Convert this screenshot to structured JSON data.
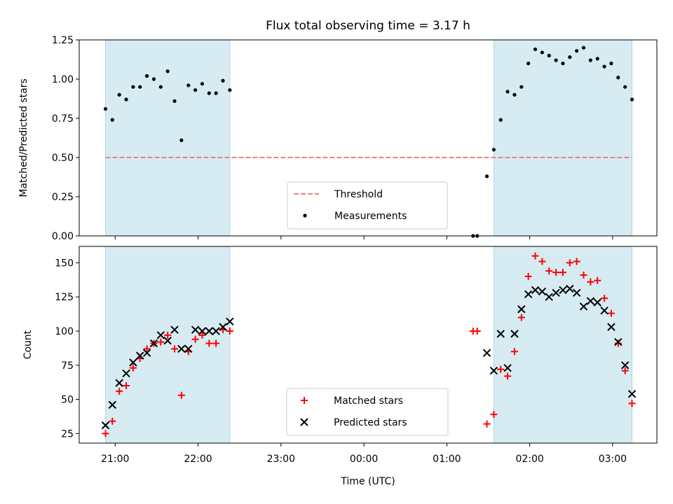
{
  "title": "Flux total observing time = 3.17 h",
  "xlabel": "Time (UTC)",
  "x_ticks": [
    "21:00",
    "22:00",
    "23:00",
    "00:00",
    "01:00",
    "02:00",
    "03:00"
  ],
  "colors": {
    "shade": "#add8e6",
    "threshold": "#f08080",
    "measurements": "#000000",
    "matched": "#ff0000",
    "predicted": "#000000"
  },
  "chart_data": [
    {
      "type": "scatter",
      "ylabel": "Matched/Predicted stars",
      "xlim": [
        "20:34",
        "03:32"
      ],
      "ylim": [
        0,
        1.25
      ],
      "y_ticks": [
        "0.00",
        "0.25",
        "0.50",
        "0.75",
        "1.00",
        "1.25"
      ],
      "threshold": 0.5,
      "shaded_intervals": [
        [
          "20:53",
          "22:23"
        ],
        [
          "01:34",
          "03:14"
        ]
      ],
      "legend": {
        "placement": "lower-center",
        "entries": [
          "Threshold",
          "Measurements"
        ]
      },
      "series": [
        {
          "name": "Measurements",
          "marker": "dot",
          "points": [
            [
              "20:53",
              0.81
            ],
            [
              "20:58",
              0.74
            ],
            [
              "21:03",
              0.9
            ],
            [
              "21:08",
              0.87
            ],
            [
              "21:13",
              0.95
            ],
            [
              "21:18",
              0.95
            ],
            [
              "21:23",
              1.02
            ],
            [
              "21:28",
              1.0
            ],
            [
              "21:33",
              0.95
            ],
            [
              "21:38",
              1.05
            ],
            [
              "21:43",
              0.86
            ],
            [
              "21:48",
              0.61
            ],
            [
              "21:53",
              0.96
            ],
            [
              "21:58",
              0.93
            ],
            [
              "22:03",
              0.97
            ],
            [
              "22:08",
              0.91
            ],
            [
              "22:13",
              0.91
            ],
            [
              "22:18",
              0.99
            ],
            [
              "22:23",
              0.93
            ],
            [
              "01:19",
              0.0
            ],
            [
              "01:22",
              0.0
            ],
            [
              "01:29",
              0.38
            ],
            [
              "01:34",
              0.55
            ],
            [
              "01:39",
              0.74
            ],
            [
              "01:44",
              0.92
            ],
            [
              "01:49",
              0.9
            ],
            [
              "01:54",
              0.95
            ],
            [
              "01:59",
              1.1
            ],
            [
              "02:04",
              1.19
            ],
            [
              "02:09",
              1.17
            ],
            [
              "02:14",
              1.15
            ],
            [
              "02:19",
              1.12
            ],
            [
              "02:24",
              1.1
            ],
            [
              "02:29",
              1.14
            ],
            [
              "02:34",
              1.18
            ],
            [
              "02:39",
              1.2
            ],
            [
              "02:44",
              1.12
            ],
            [
              "02:49",
              1.13
            ],
            [
              "02:54",
              1.08
            ],
            [
              "02:59",
              1.1
            ],
            [
              "03:04",
              1.01
            ],
            [
              "03:09",
              0.95
            ],
            [
              "03:14",
              0.87
            ]
          ]
        }
      ]
    },
    {
      "type": "scatter",
      "ylabel": "Count",
      "xlim": [
        "20:34",
        "03:32"
      ],
      "ylim": [
        18,
        162
      ],
      "y_ticks": [
        "25",
        "50",
        "75",
        "100",
        "125",
        "150"
      ],
      "shaded_intervals": [
        [
          "20:53",
          "22:23"
        ],
        [
          "01:34",
          "03:14"
        ]
      ],
      "legend": {
        "placement": "lower-center",
        "entries": [
          "Matched stars",
          "Predicted stars"
        ]
      },
      "series": [
        {
          "name": "Matched stars",
          "marker": "plus",
          "points": [
            [
              "20:53",
              25
            ],
            [
              "20:58",
              34
            ],
            [
              "21:03",
              56
            ],
            [
              "21:08",
              60
            ],
            [
              "21:13",
              73
            ],
            [
              "21:18",
              80
            ],
            [
              "21:23",
              87
            ],
            [
              "21:28",
              91
            ],
            [
              "21:33",
              92
            ],
            [
              "21:38",
              97
            ],
            [
              "21:43",
              87
            ],
            [
              "21:48",
              53
            ],
            [
              "21:53",
              85
            ],
            [
              "21:58",
              94
            ],
            [
              "22:03",
              97
            ],
            [
              "22:08",
              91
            ],
            [
              "22:13",
              91
            ],
            [
              "22:18",
              101
            ],
            [
              "22:23",
              100
            ],
            [
              "01:19",
              100
            ],
            [
              "01:22",
              100
            ],
            [
              "01:29",
              32
            ],
            [
              "01:34",
              39
            ],
            [
              "01:39",
              72
            ],
            [
              "01:44",
              67
            ],
            [
              "01:49",
              85
            ],
            [
              "01:54",
              110
            ],
            [
              "01:59",
              140
            ],
            [
              "02:04",
              155
            ],
            [
              "02:09",
              151
            ],
            [
              "02:14",
              144
            ],
            [
              "02:19",
              143
            ],
            [
              "02:24",
              143
            ],
            [
              "02:29",
              150
            ],
            [
              "02:34",
              151
            ],
            [
              "02:39",
              141
            ],
            [
              "02:44",
              136
            ],
            [
              "02:49",
              137
            ],
            [
              "02:54",
              124
            ],
            [
              "02:59",
              113
            ],
            [
              "03:04",
              91
            ],
            [
              "03:09",
              71
            ],
            [
              "03:14",
              47
            ]
          ]
        },
        {
          "name": "Predicted stars",
          "marker": "x",
          "points": [
            [
              "20:53",
              31
            ],
            [
              "20:58",
              46
            ],
            [
              "21:03",
              62
            ],
            [
              "21:08",
              69
            ],
            [
              "21:13",
              77
            ],
            [
              "21:18",
              82
            ],
            [
              "21:23",
              84
            ],
            [
              "21:28",
              91
            ],
            [
              "21:33",
              97
            ],
            [
              "21:38",
              93
            ],
            [
              "21:43",
              101
            ],
            [
              "21:48",
              87
            ],
            [
              "21:53",
              87
            ],
            [
              "21:58",
              101
            ],
            [
              "22:03",
              100
            ],
            [
              "22:08",
              100
            ],
            [
              "22:13",
              100
            ],
            [
              "22:18",
              103
            ],
            [
              "22:23",
              107
            ],
            [
              "01:29",
              84
            ],
            [
              "01:34",
              71
            ],
            [
              "01:39",
              98
            ],
            [
              "01:44",
              73
            ],
            [
              "01:49",
              98
            ],
            [
              "01:54",
              116
            ],
            [
              "01:59",
              127
            ],
            [
              "02:04",
              130
            ],
            [
              "02:09",
              129
            ],
            [
              "02:14",
              125
            ],
            [
              "02:19",
              128
            ],
            [
              "02:24",
              130
            ],
            [
              "02:29",
              131
            ],
            [
              "02:34",
              128
            ],
            [
              "02:39",
              118
            ],
            [
              "02:44",
              122
            ],
            [
              "02:49",
              121
            ],
            [
              "02:54",
              115
            ],
            [
              "02:59",
              103
            ],
            [
              "03:04",
              92
            ],
            [
              "03:09",
              75
            ],
            [
              "03:14",
              54
            ]
          ]
        }
      ]
    }
  ]
}
